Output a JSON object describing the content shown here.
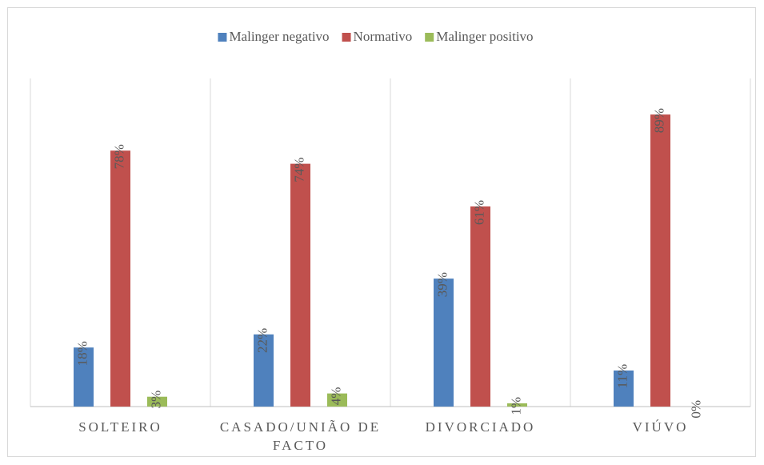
{
  "chart_data": {
    "type": "bar",
    "categories": [
      "SOLTEIRO",
      "CASADO/UNIÃO DE FACTO",
      "DIVORCIADO",
      "VIÚVO"
    ],
    "series": [
      {
        "name": "Malinger negativo",
        "color": "#4f81bd",
        "values": [
          18,
          22,
          39,
          11
        ],
        "value_labels": [
          "18%",
          "22%",
          "39%",
          "11%"
        ]
      },
      {
        "name": "Normativo",
        "color": "#c0504d",
        "values": [
          78,
          74,
          61,
          89
        ],
        "value_labels": [
          "78%",
          "74%",
          "61%",
          "89%"
        ]
      },
      {
        "name": "Malinger positivo",
        "color": "#9bbb59",
        "values": [
          3,
          4,
          1,
          0
        ],
        "value_labels": [
          "3%",
          "4%",
          "1%",
          "0%"
        ]
      }
    ],
    "ylim": [
      0,
      100
    ],
    "legend": "top"
  }
}
